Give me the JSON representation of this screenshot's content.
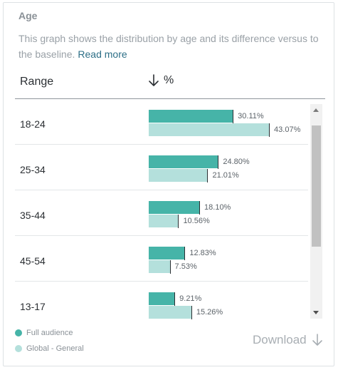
{
  "card": {
    "title": "Age",
    "description": "This graph shows the distribution by age and its difference versus to the baseline.",
    "read_more": "Read more"
  },
  "table": {
    "col_range": "Range",
    "col_percent": "%",
    "sort_icon": "arrow-down-icon",
    "rows": [
      {
        "range": "18-24",
        "full": 30.11,
        "full_label": "30.11%",
        "base": 43.07,
        "base_label": "43.07%"
      },
      {
        "range": "25-34",
        "full": 24.8,
        "full_label": "24.80%",
        "base": 21.01,
        "base_label": "21.01%"
      },
      {
        "range": "35-44",
        "full": 18.1,
        "full_label": "18.10%",
        "base": 10.56,
        "base_label": "10.56%"
      },
      {
        "range": "45-54",
        "full": 12.83,
        "full_label": "12.83%",
        "base": 7.53,
        "base_label": "7.53%"
      },
      {
        "range": "13-17",
        "full": 9.21,
        "full_label": "9.21%",
        "base": 15.26,
        "base_label": "15.26%"
      }
    ]
  },
  "legend": {
    "full": "Full audience",
    "base": "Global - General"
  },
  "download": {
    "label": "Download",
    "icon": "arrow-down-icon"
  },
  "colors": {
    "full": "#46b4a8",
    "base": "#b4e0dc",
    "link": "#2d6f87"
  }
}
